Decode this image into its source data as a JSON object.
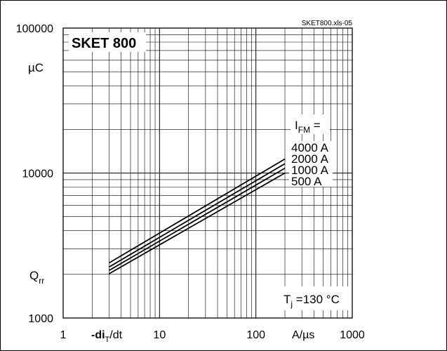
{
  "chart_data": {
    "type": "line",
    "file_code": "SKET800.xls-05",
    "title": "SKET 800",
    "xlabel": "-di_T/dt",
    "xlabel_parts": {
      "base": "-di",
      "sub": "T",
      "tail": "/dt"
    },
    "xunit": "A/µs",
    "ylabel": "Q_rr",
    "ylabel_parts": {
      "base": "Q",
      "sub": "rr"
    },
    "yunit": "µC",
    "xscale": "log",
    "yscale": "log",
    "xlim": [
      1,
      1000
    ],
    "ylim": [
      1000,
      100000
    ],
    "grid": true,
    "xticks": [
      1,
      10,
      100,
      1000
    ],
    "xtick_labels": [
      "1",
      "10",
      "100",
      "1000"
    ],
    "yticks": [
      1000,
      10000,
      100000
    ],
    "ytick_labels": [
      "1000",
      "10000",
      "100000"
    ],
    "legend_header": {
      "base": "I",
      "sub": "FM",
      "tail": " ="
    },
    "condition": {
      "base": "T",
      "sub": "j",
      "tail": " =130 °C"
    },
    "series": [
      {
        "name": "4000 A",
        "x": [
          3,
          200
        ],
        "y": [
          2400,
          12500
        ]
      },
      {
        "name": "2000 A",
        "x": [
          3,
          200
        ],
        "y": [
          2250,
          11600
        ]
      },
      {
        "name": "1000 A",
        "x": [
          3,
          200
        ],
        "y": [
          2130,
          10800
        ]
      },
      {
        "name": "500 A",
        "x": [
          3,
          200
        ],
        "y": [
          2020,
          10000
        ]
      }
    ]
  }
}
